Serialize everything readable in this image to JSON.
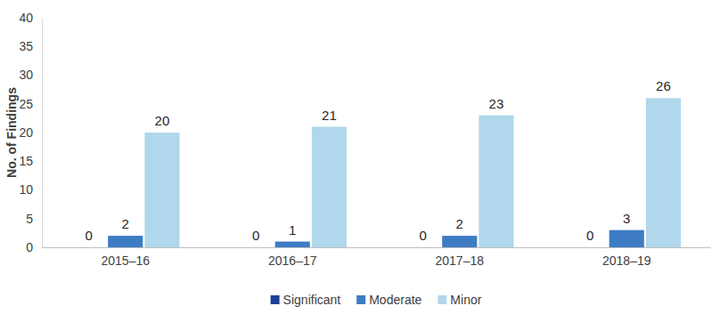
{
  "chart_data": {
    "type": "bar",
    "y_label": "No. of Findings",
    "categories": [
      "2015–16",
      "2016–17",
      "2017–18",
      "2018–19"
    ],
    "series": [
      {
        "name": "Significant",
        "color": "#1f3f98",
        "values": [
          0,
          0,
          0,
          0
        ]
      },
      {
        "name": "Moderate",
        "color": "#3d7cc4",
        "values": [
          2,
          1,
          2,
          3
        ]
      },
      {
        "name": "Minor",
        "color": "#b0d7eb",
        "values": [
          20,
          21,
          23,
          26
        ]
      }
    ],
    "ylim": [
      0,
      40
    ],
    "yticks": [
      0,
      5,
      10,
      15,
      20,
      25,
      30,
      35,
      40
    ],
    "grid": false,
    "legend": "bottom",
    "data_labels": true
  }
}
